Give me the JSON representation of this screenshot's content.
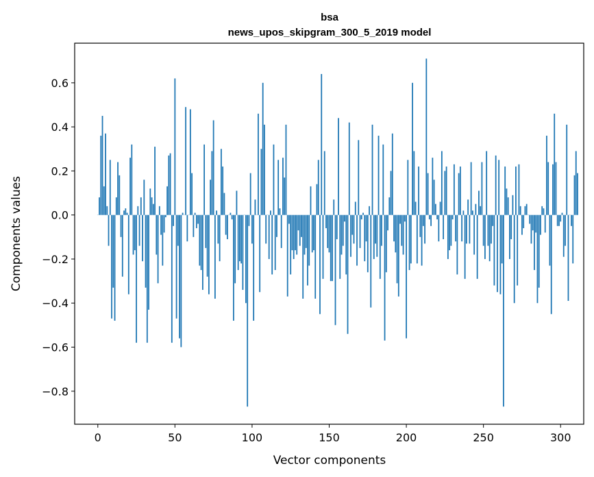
{
  "chart_data": {
    "type": "bar",
    "title": "bsa",
    "subtitle": "news_upos_skipgram_300_5_2019 model",
    "xlabel": "Vector components",
    "ylabel": "Components values",
    "xlim": [
      -15,
      315
    ],
    "ylim": [
      -0.95,
      0.78
    ],
    "xticks": [
      0,
      50,
      100,
      150,
      200,
      250,
      300
    ],
    "yticks": [
      -0.8,
      -0.6,
      -0.4,
      -0.2,
      0.0,
      0.2,
      0.4,
      0.6
    ],
    "xtick_labels": [
      "0",
      "50",
      "100",
      "150",
      "200",
      "250",
      "300"
    ],
    "ytick_labels": [
      "−0.8",
      "−0.6",
      "−0.4",
      "−0.2",
      "0.0",
      "0.2",
      "0.4",
      "0.6"
    ],
    "grid": false,
    "bar_color": "#1f77b4",
    "values": [
      0.0,
      0.08,
      0.36,
      0.45,
      0.13,
      0.37,
      0.04,
      -0.14,
      0.25,
      -0.47,
      -0.33,
      -0.48,
      0.08,
      0.24,
      0.18,
      -0.1,
      -0.28,
      0.02,
      0.03,
      0.01,
      -0.36,
      0.26,
      0.32,
      -0.18,
      -0.16,
      -0.58,
      0.04,
      -0.14,
      0.08,
      -0.21,
      0.16,
      -0.33,
      -0.58,
      -0.43,
      0.12,
      0.08,
      0.05,
      0.31,
      -0.18,
      -0.31,
      0.04,
      -0.09,
      -0.23,
      -0.08,
      -0.01,
      0.13,
      0.27,
      0.28,
      -0.58,
      -0.05,
      0.62,
      -0.47,
      -0.14,
      -0.56,
      -0.6,
      0.01,
      0.0,
      0.49,
      -0.12,
      0.0,
      0.48,
      0.19,
      -0.1,
      0.01,
      -0.06,
      -0.04,
      -0.23,
      -0.25,
      -0.34,
      0.32,
      -0.15,
      -0.28,
      -0.36,
      0.16,
      0.29,
      0.43,
      -0.38,
      0.02,
      -0.13,
      -0.21,
      0.3,
      0.22,
      0.1,
      -0.09,
      -0.11,
      0.0,
      0.01,
      -0.02,
      -0.48,
      -0.31,
      0.11,
      -0.25,
      -0.21,
      -0.22,
      -0.34,
      0.0,
      -0.4,
      -0.87,
      -0.05,
      0.19,
      -0.13,
      -0.48,
      0.07,
      0.0,
      0.46,
      -0.35,
      0.3,
      0.6,
      0.41,
      -0.13,
      0.0,
      -0.2,
      0.02,
      -0.27,
      0.32,
      -0.25,
      -0.1,
      0.25,
      0.03,
      -0.15,
      0.26,
      0.17,
      0.41,
      -0.37,
      -0.04,
      -0.27,
      -0.16,
      -0.2,
      -0.16,
      -0.18,
      -0.07,
      -0.14,
      -0.1,
      -0.38,
      -0.18,
      -0.15,
      -0.32,
      -0.23,
      0.13,
      -0.17,
      -0.16,
      -0.38,
      0.14,
      0.25,
      -0.45,
      0.64,
      -0.29,
      0.29,
      -0.06,
      -0.15,
      -0.17,
      -0.3,
      -0.3,
      0.07,
      -0.5,
      -0.11,
      0.44,
      -0.29,
      -0.18,
      -0.14,
      -0.03,
      -0.27,
      -0.54,
      0.42,
      -0.19,
      -0.09,
      -0.13,
      0.06,
      -0.23,
      0.34,
      -0.15,
      -0.02,
      0.01,
      -0.21,
      -0.12,
      -0.26,
      0.04,
      -0.42,
      0.41,
      -0.2,
      -0.13,
      -0.19,
      0.36,
      -0.29,
      -0.14,
      0.32,
      -0.57,
      -0.26,
      -0.07,
      0.08,
      0.2,
      0.37,
      -0.12,
      -0.17,
      -0.31,
      -0.37,
      -0.04,
      -0.14,
      -0.18,
      -0.03,
      -0.56,
      0.25,
      -0.25,
      -0.22,
      0.6,
      0.29,
      0.06,
      -0.22,
      0.22,
      -0.1,
      -0.23,
      -0.05,
      -0.13,
      0.71,
      0.19,
      -0.02,
      -0.05,
      0.26,
      0.16,
      0.05,
      -0.02,
      -0.12,
      0.06,
      0.29,
      -0.11,
      0.2,
      0.22,
      -0.2,
      -0.16,
      -0.14,
      -0.02,
      0.23,
      -0.12,
      -0.27,
      0.19,
      0.22,
      -0.12,
      0.02,
      -0.29,
      -0.13,
      0.07,
      -0.13,
      0.24,
      0.02,
      -0.18,
      0.05,
      -0.29,
      0.11,
      0.04,
      0.24,
      -0.14,
      -0.2,
      0.29,
      -0.14,
      -0.21,
      -0.13,
      -0.05,
      -0.32,
      0.27,
      -0.35,
      0.25,
      -0.36,
      -0.22,
      -0.87,
      0.22,
      0.12,
      0.08,
      -0.2,
      -0.11,
      0.09,
      -0.4,
      0.22,
      -0.32,
      0.23,
      0.04,
      -0.09,
      -0.06,
      0.04,
      0.05,
      0.0,
      -0.04,
      -0.13,
      -0.07,
      -0.25,
      -0.08,
      -0.4,
      -0.33,
      -0.09,
      0.04,
      0.03,
      -0.08,
      0.36,
      0.24,
      -0.23,
      -0.45,
      0.23,
      0.46,
      0.24,
      -0.05,
      -0.05,
      -0.03,
      0.01,
      -0.19,
      -0.14,
      0.41,
      -0.39,
      0.0,
      -0.05,
      -0.22,
      0.18,
      0.29,
      0.19
    ]
  }
}
